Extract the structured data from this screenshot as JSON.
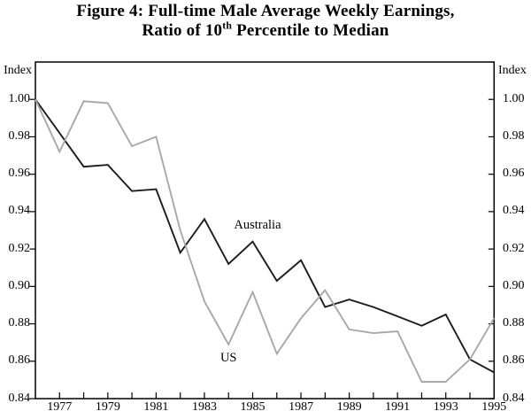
{
  "figure": {
    "title_line1": "Figure 4: Full-time Male Average Weekly Earnings,",
    "title_line2_pre": "Ratio of 10",
    "title_line2_sup": "th",
    "title_line2_post": " Percentile to Median"
  },
  "chart_data": {
    "type": "line",
    "title": "Figure 4: Full-time Male Average Weekly Earnings, Ratio of 10th Percentile to Median",
    "ylabel_left": "Index",
    "ylabel_right": "Index",
    "grid": false,
    "legend": "inline-annotations",
    "xlim": [
      1976,
      1995
    ],
    "ylim": [
      0.84,
      1.02
    ],
    "x": [
      1976,
      1977,
      1978,
      1979,
      1980,
      1981,
      1982,
      1983,
      1984,
      1985,
      1986,
      1987,
      1988,
      1989,
      1990,
      1991,
      1992,
      1993,
      1994,
      1995
    ],
    "series": [
      {
        "name": "Australia",
        "color": "#1c1c1c",
        "values": [
          1.0,
          0.982,
          0.964,
          0.965,
          0.951,
          0.952,
          0.918,
          0.936,
          0.912,
          0.924,
          0.903,
          0.914,
          0.889,
          0.893,
          0.889,
          0.884,
          0.879,
          0.885,
          0.861,
          0.854
        ]
      },
      {
        "name": "US",
        "color": "#a8a8a8",
        "values": [
          1.0,
          0.972,
          0.999,
          0.998,
          0.975,
          0.98,
          0.93,
          0.892,
          0.869,
          0.897,
          0.864,
          0.883,
          0.898,
          0.877,
          0.875,
          0.876,
          0.849,
          0.849,
          0.861,
          0.883
        ]
      }
    ],
    "y_tick_labels": [
      "1.00",
      "0.98",
      "0.96",
      "0.94",
      "0.92",
      "0.90",
      "0.88",
      "0.86",
      "0.84"
    ],
    "y_tick_values": [
      1.0,
      0.98,
      0.96,
      0.94,
      0.92,
      0.9,
      0.88,
      0.86,
      0.84
    ],
    "x_tick_years": [
      1977,
      1978,
      1979,
      1980,
      1981,
      1982,
      1983,
      1984,
      1985,
      1986,
      1987,
      1988,
      1989,
      1990,
      1991,
      1992,
      1993,
      1994
    ],
    "x_label_years": [
      "1977",
      "1979",
      "1981",
      "1983",
      "1985",
      "1987",
      "1989",
      "1991",
      "1993",
      "1995"
    ],
    "annotations": [
      {
        "text": "Australia",
        "x_year": 1985.2,
        "y_value": 0.9328
      },
      {
        "text": "US",
        "x_year": 1984.0,
        "y_value": 0.8618
      }
    ]
  }
}
